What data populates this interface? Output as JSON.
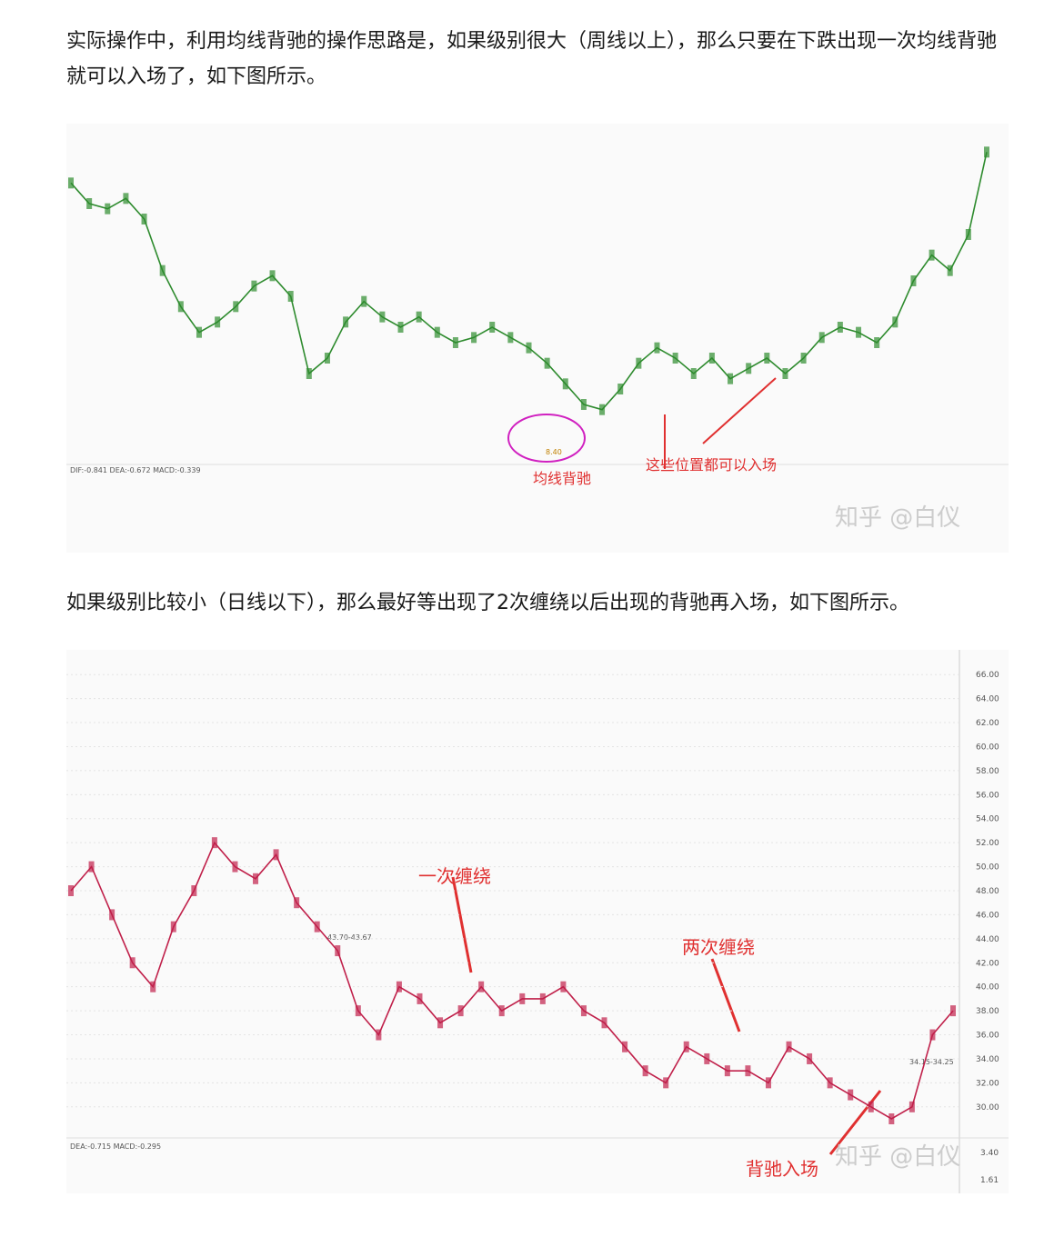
{
  "paragraphs": [
    "实际操作中，利用均线背驰的操作思路是，如果级别很大（周线以上），那么只要在下跌出现一次均线背驰就可以入场了，如下图所示。",
    "如果级别比较小（日线以下），那么最好等出现了2次缠绕以后出现的背驰再入场，如下图所示。"
  ],
  "figure1": {
    "annotations": [
      "均线背驰",
      "这些位置都可以入场"
    ],
    "low_label": "8.40",
    "indicator_header": "DIF:-0.841 DEA:-0.672 MACD:-0.339",
    "watermark": "知乎 @白仪",
    "ylim": [
      8,
      14
    ],
    "color": "#2e8b2e",
    "values": [
      13.2,
      12.8,
      12.7,
      12.9,
      12.5,
      11.5,
      10.8,
      10.3,
      10.5,
      10.8,
      11.2,
      11.4,
      11.0,
      9.5,
      9.8,
      10.5,
      10.9,
      10.6,
      10.4,
      10.6,
      10.3,
      10.1,
      10.2,
      10.4,
      10.2,
      10.0,
      9.7,
      9.3,
      8.9,
      8.8,
      9.2,
      9.7,
      10.0,
      9.8,
      9.5,
      9.8,
      9.4,
      9.6,
      9.8,
      9.5,
      9.8,
      10.2,
      10.4,
      10.3,
      10.1,
      10.5,
      11.3,
      11.8,
      11.5,
      12.2,
      13.8
    ]
  },
  "figure2": {
    "annotations": [
      "一次缠绕",
      "两次缠绕",
      "背驰入场"
    ],
    "range_labels": [
      "43.70-43.67",
      "34.15-34.25"
    ],
    "indicator_header": "DEA:-0.715 MACD:-0.295",
    "watermark": "知乎 @白仪",
    "ylim": [
      29,
      67
    ],
    "color": "#c0204a",
    "yticks": [
      {
        "value": 66,
        "label": "66.00"
      },
      {
        "value": 64,
        "label": "64.00"
      },
      {
        "value": 62,
        "label": "62.00"
      },
      {
        "value": 60,
        "label": "60.00"
      },
      {
        "value": 58,
        "label": "58.00"
      },
      {
        "value": 56,
        "label": "56.00"
      },
      {
        "value": 54,
        "label": "54.00"
      },
      {
        "value": 52,
        "label": "52.00"
      },
      {
        "value": 50,
        "label": "50.00"
      },
      {
        "value": 48,
        "label": "48.00"
      },
      {
        "value": 46,
        "label": "46.00"
      },
      {
        "value": 44,
        "label": "44.00"
      },
      {
        "value": 42,
        "label": "42.00"
      },
      {
        "value": 40,
        "label": "40.00"
      },
      {
        "value": 38,
        "label": "38.00"
      },
      {
        "value": 36,
        "label": "36.00"
      },
      {
        "value": 34,
        "label": "34.00"
      },
      {
        "value": 32,
        "label": "32.00"
      },
      {
        "value": 30,
        "label": "30.00"
      }
    ],
    "sub_ticks": [
      {
        "value": 3.4,
        "label": "3.40"
      },
      {
        "value": 1.61,
        "label": "1.61"
      }
    ],
    "values": [
      48,
      50,
      46,
      42,
      40,
      45,
      48,
      52,
      50,
      49,
      51,
      47,
      45,
      43,
      38,
      36,
      40,
      39,
      37,
      38,
      40,
      38,
      39,
      39,
      40,
      38,
      37,
      35,
      33,
      32,
      35,
      34,
      33,
      33,
      32,
      35,
      34,
      32,
      31,
      30,
      29,
      30,
      36,
      38
    ]
  }
}
